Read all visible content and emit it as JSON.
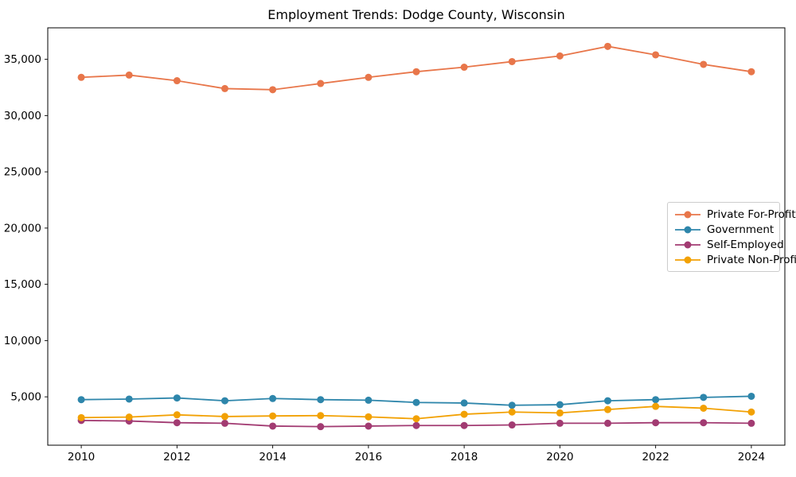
{
  "chart_data": {
    "type": "line",
    "title": "Employment Trends: Dodge County, Wisconsin",
    "xlabel": "",
    "ylabel": "",
    "x": [
      2010,
      2011,
      2012,
      2013,
      2014,
      2015,
      2016,
      2017,
      2018,
      2019,
      2020,
      2021,
      2022,
      2023,
      2024
    ],
    "series": [
      {
        "name": "Private For-Profit",
        "color": "#E8764A",
        "values": [
          33400,
          33600,
          33100,
          32400,
          32300,
          32850,
          33400,
          33900,
          34300,
          34800,
          35300,
          36150,
          35400,
          34550,
          33900
        ]
      },
      {
        "name": "Government",
        "color": "#2E86AB",
        "values": [
          4750,
          4800,
          4900,
          4650,
          4850,
          4750,
          4700,
          4500,
          4450,
          4250,
          4300,
          4650,
          4750,
          4950,
          5050
        ]
      },
      {
        "name": "Self-Employed",
        "color": "#A23B72",
        "values": [
          2900,
          2850,
          2700,
          2650,
          2400,
          2350,
          2400,
          2450,
          2450,
          2500,
          2650,
          2650,
          2700,
          2700,
          2650
        ]
      },
      {
        "name": "Private Non-Profit",
        "color": "#F2A104",
        "values": [
          3150,
          3200,
          3400,
          3250,
          3300,
          3330,
          3220,
          3050,
          3450,
          3650,
          3570,
          3870,
          4150,
          3990,
          3650
        ]
      }
    ],
    "xticks": [
      2010,
      2012,
      2014,
      2016,
      2018,
      2020,
      2022,
      2024
    ],
    "yticks": [
      5000,
      10000,
      15000,
      20000,
      25000,
      30000,
      35000
    ],
    "ytick_labels": [
      "5,000",
      "10,000",
      "15,000",
      "20,000",
      "25,000",
      "30,000",
      "35,000"
    ],
    "xlim": [
      2009.3,
      2024.7
    ],
    "ylim": [
      700,
      37800
    ],
    "grid": false,
    "marker": "circle",
    "legend": {
      "position": "center right",
      "entries": [
        "Private For-Profit",
        "Government",
        "Self-Employed",
        "Private Non-Profit"
      ]
    },
    "axis_color": "#000000",
    "background": "#ffffff"
  }
}
